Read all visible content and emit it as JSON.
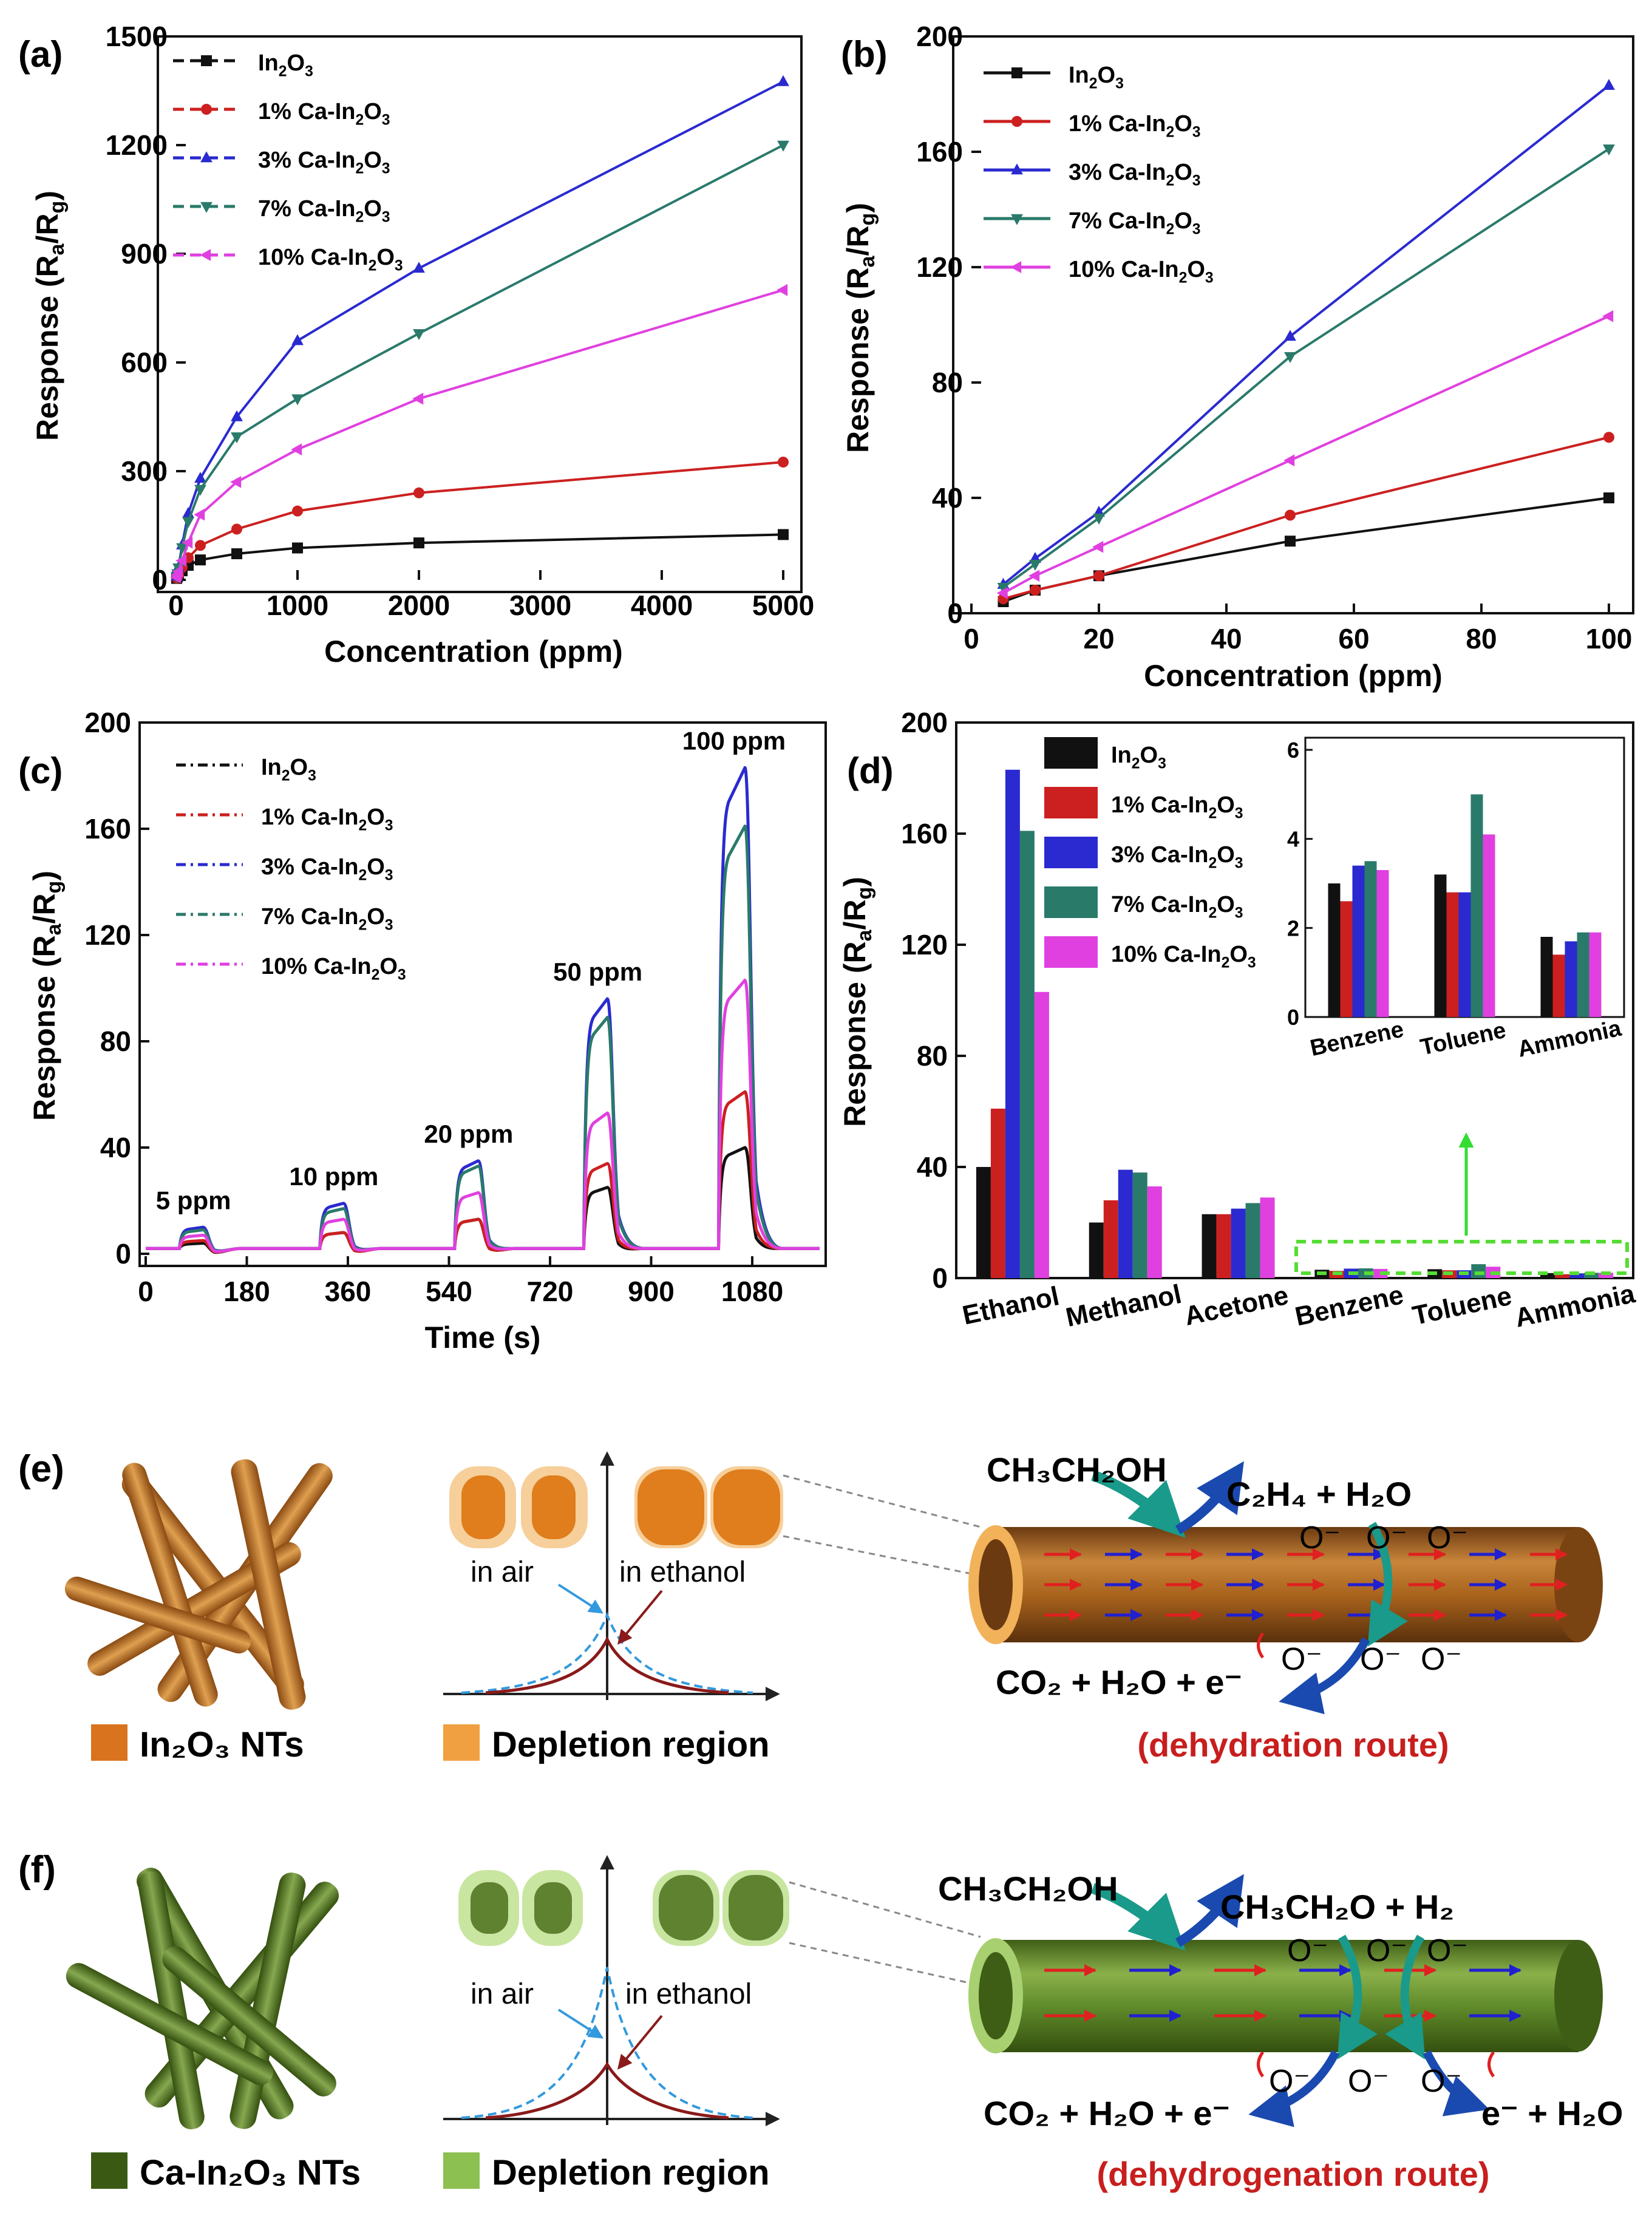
{
  "colors": {
    "In2O3": "#111111",
    "1pct": "#cc2020",
    "3pct": "#2a2ad0",
    "7pct": "#2a7a6a",
    "10pct": "#e040e0",
    "tube_brown": "#a8621c",
    "tube_green": "#5f8a2a",
    "route_red": "#c81e1e"
  },
  "series_names": [
    "In2O3",
    "1% Ca-In2O3",
    "3% Ca-In2O3",
    "7% Ca-In2O3",
    "10% Ca-In2O3"
  ],
  "chart_data": [
    {
      "panel": "(a)",
      "type": "line",
      "xlabel": "Concentration (ppm)",
      "ylabel": "Response (Ra/Rg)",
      "xlim": [
        0,
        5000
      ],
      "ylim": [
        0,
        1500
      ],
      "x_ticks": [
        0,
        1000,
        2000,
        3000,
        4000,
        5000
      ],
      "y_ticks": [
        0,
        300,
        600,
        900,
        1200,
        1500
      ],
      "x": [
        5,
        10,
        20,
        50,
        100,
        200,
        500,
        1000,
        2000,
        5000
      ],
      "series": [
        {
          "name": "In2O3",
          "values": [
            4,
            8,
            13,
            25,
            40,
            55,
            72,
            88,
            102,
            125
          ]
        },
        {
          "name": "1% Ca-In2O3",
          "values": [
            5,
            8,
            13,
            34,
            61,
            95,
            140,
            190,
            240,
            325
          ]
        },
        {
          "name": "3% Ca-In2O3",
          "values": [
            10,
            19,
            35,
            96,
            183,
            280,
            450,
            660,
            860,
            1375
          ]
        },
        {
          "name": "7% Ca-In2O3",
          "values": [
            9,
            17,
            33,
            89,
            161,
            250,
            395,
            500,
            680,
            1200
          ]
        },
        {
          "name": "10% Ca-In2O3",
          "values": [
            7,
            13,
            23,
            53,
            103,
            180,
            270,
            360,
            500,
            800
          ]
        }
      ]
    },
    {
      "panel": "(b)",
      "type": "line",
      "xlabel": "Concentration (ppm)",
      "ylabel": "Response (Ra/Rg)",
      "xlim": [
        0,
        100
      ],
      "ylim": [
        0,
        200
      ],
      "x_ticks": [
        0,
        20,
        40,
        60,
        80,
        100
      ],
      "y_ticks": [
        0,
        40,
        80,
        120,
        160,
        200
      ],
      "x": [
        5,
        10,
        20,
        50,
        100
      ],
      "series": [
        {
          "name": "In2O3",
          "values": [
            4,
            8,
            13,
            25,
            40
          ]
        },
        {
          "name": "1% Ca-In2O3",
          "values": [
            5,
            8,
            13,
            34,
            61
          ]
        },
        {
          "name": "3% Ca-In2O3",
          "values": [
            10,
            19,
            35,
            96,
            183
          ]
        },
        {
          "name": "7% Ca-In2O3",
          "values": [
            9,
            17,
            33,
            89,
            161
          ]
        },
        {
          "name": "10% Ca-In2O3",
          "values": [
            7,
            13,
            23,
            53,
            103
          ]
        }
      ]
    },
    {
      "panel": "(c)",
      "type": "line",
      "xlabel": "Time (s)",
      "ylabel": "Response (Ra/Rg)",
      "xlim": [
        0,
        1200
      ],
      "ylim": [
        0,
        200
      ],
      "x_ticks": [
        0,
        180,
        360,
        540,
        720,
        900,
        1080
      ],
      "y_ticks": [
        0,
        40,
        80,
        120,
        160,
        200
      ],
      "pulses": [
        {
          "label": "5 ppm",
          "start": 60,
          "end": 110
        },
        {
          "label": "10 ppm",
          "start": 310,
          "end": 360
        },
        {
          "label": "20 ppm",
          "start": 550,
          "end": 600
        },
        {
          "label": "50 ppm",
          "start": 780,
          "end": 830
        },
        {
          "label": "100 ppm",
          "start": 1020,
          "end": 1075
        }
      ],
      "series": [
        {
          "name": "In2O3",
          "peaks": [
            4,
            8,
            13,
            25,
            40
          ]
        },
        {
          "name": "1% Ca-In2O3",
          "peaks": [
            5,
            8,
            13,
            34,
            61
          ]
        },
        {
          "name": "3% Ca-In2O3",
          "peaks": [
            10,
            19,
            35,
            96,
            183
          ]
        },
        {
          "name": "7% Ca-In2O3",
          "peaks": [
            9,
            17,
            33,
            89,
            161
          ]
        },
        {
          "name": "10% Ca-In2O3",
          "peaks": [
            7,
            13,
            23,
            53,
            103
          ]
        }
      ]
    },
    {
      "panel": "(d)",
      "type": "bar",
      "ylabel": "Response (Ra/Rg)",
      "ylim": [
        0,
        200
      ],
      "y_ticks": [
        0,
        40,
        80,
        120,
        160,
        200
      ],
      "categories": [
        "Ethanol",
        "Methanol",
        "Acetone",
        "Benzene",
        "Toluene",
        "Ammonia"
      ],
      "series": [
        {
          "name": "In2O3",
          "values": [
            40,
            20,
            23,
            3,
            3.2,
            1.8
          ]
        },
        {
          "name": "1% Ca-In2O3",
          "values": [
            61,
            28,
            23,
            2.6,
            2.8,
            1.4
          ]
        },
        {
          "name": "3% Ca-In2O3",
          "values": [
            183,
            39,
            25,
            3.4,
            2.8,
            1.7
          ]
        },
        {
          "name": "7% Ca-In2O3",
          "values": [
            161,
            38,
            27,
            3.5,
            5,
            1.9
          ]
        },
        {
          "name": "10% Ca-In2O3",
          "values": [
            103,
            33,
            29,
            3.3,
            4.1,
            1.9
          ]
        }
      ],
      "inset": {
        "categories": [
          "Benzene",
          "Toluene",
          "Ammonia"
        ],
        "ylim": [
          0,
          6
        ],
        "y_ticks": [
          0,
          2,
          4,
          6
        ]
      }
    }
  ],
  "panel_e": {
    "label": "(e)",
    "legend_nts": "In₂O₃ NTs",
    "legend_depletion": "Depletion region",
    "in_air": "in air",
    "in_ethanol": "in ethanol",
    "reactant": "CH₃CH₂OH",
    "product_top": "C₂H₄ + H₂O",
    "product_bottom": "CO₂ + H₂O + e⁻",
    "oxygen": "O⁻",
    "route": "(dehydration route)"
  },
  "panel_f": {
    "label": "(f)",
    "legend_nts": "Ca-In₂O₃ NTs",
    "legend_depletion": "Depletion region",
    "in_air": "in air",
    "in_ethanol": "in ethanol",
    "reactant": "CH₃CH₂OH",
    "product_top": "CH₃CH₂O + H₂",
    "product_bottom": "CO₂ + H₂O + e⁻",
    "product_right": "e⁻ + H₂O",
    "oxygen": "O⁻",
    "route": "(dehydrogenation route)"
  }
}
